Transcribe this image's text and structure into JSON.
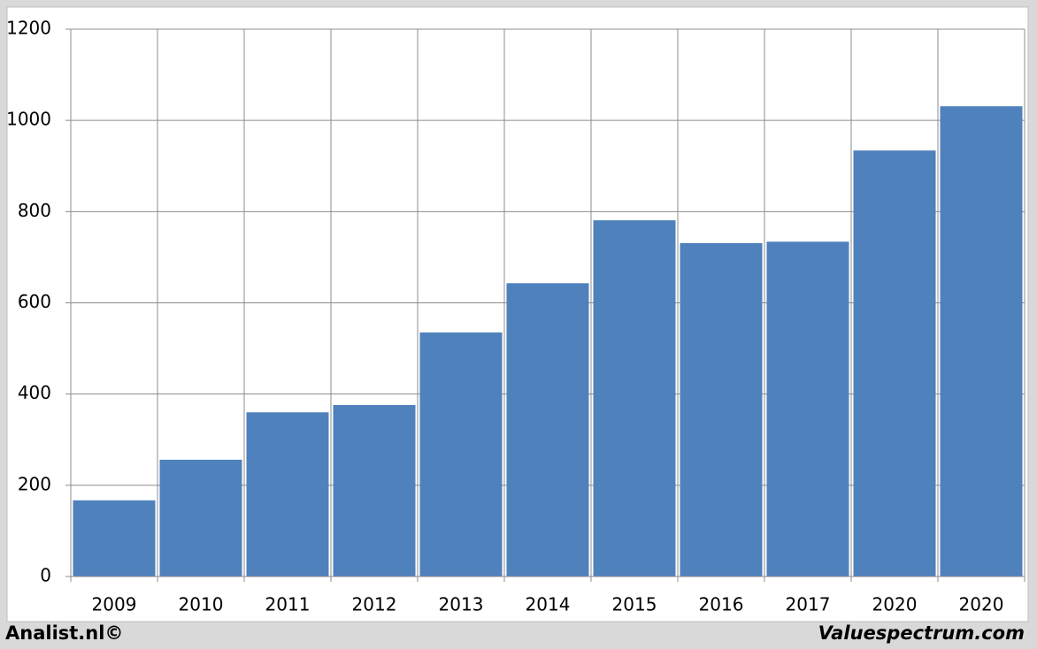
{
  "chart_data": {
    "type": "bar",
    "categories": [
      "2009",
      "2010",
      "2011",
      "2012",
      "2013",
      "2014",
      "2015",
      "2016",
      "2017",
      "2020",
      "2020"
    ],
    "values": [
      167,
      256,
      360,
      376,
      535,
      643,
      781,
      731,
      734,
      934,
      1031
    ],
    "color": "#4f81bd",
    "ylim": [
      0,
      1200
    ],
    "yticks": [
      0,
      200,
      400,
      600,
      800,
      1000,
      1200
    ],
    "grid": true
  },
  "footer": {
    "left": "Analist.nl©",
    "right": "Valuespectrum.com"
  }
}
